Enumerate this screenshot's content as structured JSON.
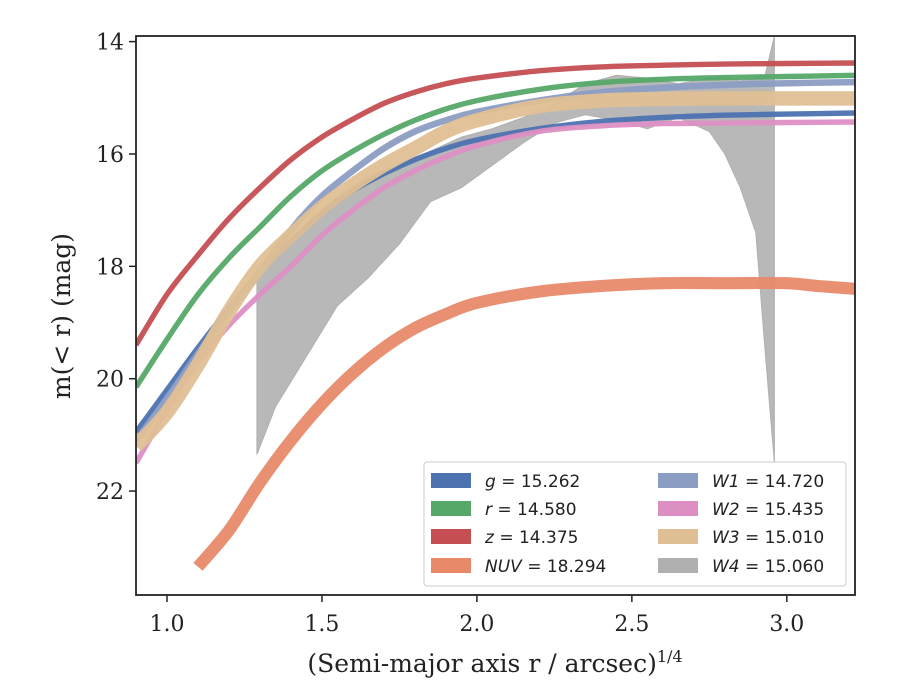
{
  "chart_data": {
    "type": "line",
    "xlabel": "(Semi-major axis r / arcsec)",
    "xlabel_sup": "1/4",
    "ylabel": "m(< r) (mag)",
    "xlim": [
      0.9,
      3.22
    ],
    "ylim": [
      23.85,
      13.9
    ],
    "y_inverted": true,
    "xticks": [
      1.0,
      1.5,
      2.0,
      2.5,
      3.0
    ],
    "xtick_labels": [
      "1.0",
      "1.5",
      "2.0",
      "2.5",
      "3.0"
    ],
    "yticks": [
      14,
      16,
      18,
      20,
      22
    ],
    "ytick_labels": [
      "14",
      "16",
      "18",
      "20",
      "22"
    ],
    "grid": false,
    "legend_position": "lower-right",
    "series": [
      {
        "name": "g",
        "label": "g = 15.262",
        "color": "#4c72b0",
        "band_width": 0.06,
        "x": [
          0.9,
          1.0,
          1.1,
          1.2,
          1.3,
          1.4,
          1.5,
          1.6,
          1.7,
          1.8,
          1.9,
          2.0,
          2.2,
          2.4,
          2.6,
          2.8,
          3.0,
          3.22
        ],
        "y": [
          20.95,
          20.2,
          19.45,
          18.75,
          18.1,
          17.55,
          17.05,
          16.65,
          16.35,
          16.1,
          15.9,
          15.75,
          15.55,
          15.42,
          15.35,
          15.31,
          15.29,
          15.27
        ]
      },
      {
        "name": "r",
        "label": "r = 14.580",
        "color": "#55a868",
        "band_width": 0.06,
        "x": [
          0.9,
          1.0,
          1.1,
          1.2,
          1.3,
          1.4,
          1.5,
          1.6,
          1.7,
          1.8,
          1.9,
          2.0,
          2.2,
          2.4,
          2.6,
          2.8,
          3.0,
          3.22
        ],
        "y": [
          20.15,
          19.3,
          18.5,
          17.85,
          17.3,
          16.75,
          16.3,
          15.95,
          15.65,
          15.4,
          15.2,
          15.05,
          14.85,
          14.73,
          14.67,
          14.64,
          14.62,
          14.6
        ]
      },
      {
        "name": "z",
        "label": "z = 14.375",
        "color": "#c44e52",
        "band_width": 0.06,
        "x": [
          0.9,
          1.0,
          1.1,
          1.2,
          1.3,
          1.4,
          1.5,
          1.6,
          1.7,
          1.8,
          1.9,
          2.0,
          2.2,
          2.4,
          2.6,
          2.8,
          3.0,
          3.22
        ],
        "y": [
          19.4,
          18.5,
          17.8,
          17.15,
          16.6,
          16.1,
          15.7,
          15.38,
          15.1,
          14.9,
          14.75,
          14.65,
          14.52,
          14.45,
          14.42,
          14.4,
          14.39,
          14.38
        ]
      },
      {
        "name": "NUV",
        "label": "NUV = 18.294",
        "color": "#e8896a",
        "band_width": 0.18,
        "x": [
          1.1,
          1.2,
          1.3,
          1.4,
          1.5,
          1.6,
          1.7,
          1.8,
          1.9,
          2.0,
          2.2,
          2.4,
          2.6,
          2.8,
          3.0,
          3.1,
          3.22
        ],
        "y": [
          23.35,
          22.7,
          21.85,
          21.1,
          20.45,
          19.9,
          19.45,
          19.1,
          18.85,
          18.65,
          18.45,
          18.35,
          18.3,
          18.3,
          18.3,
          18.35,
          18.4
        ]
      },
      {
        "name": "W1",
        "label": "W1 = 14.720",
        "color": "#8c9dc4",
        "band_width": 0.08,
        "x": [
          0.9,
          1.0,
          1.1,
          1.2,
          1.3,
          1.4,
          1.5,
          1.6,
          1.7,
          1.8,
          1.9,
          2.0,
          2.2,
          2.4,
          2.6,
          2.8,
          3.0,
          3.22
        ],
        "y": [
          21.1,
          20.35,
          19.55,
          18.8,
          18.1,
          17.35,
          16.75,
          16.3,
          15.9,
          15.6,
          15.4,
          15.25,
          15.05,
          14.9,
          14.82,
          14.77,
          14.74,
          14.72
        ]
      },
      {
        "name": "W2",
        "label": "W2 = 15.435",
        "color": "#dd8fc4",
        "band_width": 0.06,
        "x": [
          0.9,
          1.0,
          1.1,
          1.2,
          1.3,
          1.4,
          1.5,
          1.6,
          1.7,
          1.8,
          1.9,
          2.0,
          2.2,
          2.4,
          2.6,
          2.8,
          3.0,
          3.22
        ],
        "y": [
          21.5,
          20.55,
          19.7,
          19.05,
          18.5,
          18.0,
          17.45,
          17.0,
          16.6,
          16.3,
          16.05,
          15.85,
          15.6,
          15.5,
          15.46,
          15.45,
          15.44,
          15.43
        ]
      },
      {
        "name": "W3",
        "label": "W3 = 15.010",
        "color": "#dfbf94",
        "band_width": 0.22,
        "x": [
          0.9,
          1.0,
          1.1,
          1.2,
          1.3,
          1.4,
          1.5,
          1.6,
          1.7,
          1.8,
          1.9,
          2.0,
          2.2,
          2.4,
          2.6,
          2.8,
          3.0,
          3.22
        ],
        "y": [
          21.2,
          20.6,
          19.75,
          18.8,
          18.0,
          17.45,
          16.95,
          16.55,
          16.2,
          15.9,
          15.6,
          15.4,
          15.15,
          15.05,
          15.02,
          15.01,
          15.01,
          15.01
        ]
      },
      {
        "name": "W4",
        "label": "W4 = 15.060",
        "color": "#b0b0b0",
        "band": true,
        "x": [
          1.29,
          1.35,
          1.45,
          1.55,
          1.65,
          1.75,
          1.85,
          1.95,
          2.05,
          2.15,
          2.25,
          2.35,
          2.45,
          2.55,
          2.65,
          2.75,
          2.8,
          2.85,
          2.9,
          2.93,
          2.96
        ],
        "y_bright": [
          18.0,
          17.85,
          17.3,
          16.75,
          16.4,
          16.2,
          15.95,
          15.7,
          15.55,
          15.35,
          15.1,
          14.75,
          14.6,
          14.65,
          14.75,
          14.65,
          14.65,
          14.7,
          14.65,
          14.6,
          13.9
        ],
        "y_faint": [
          21.35,
          20.5,
          19.6,
          18.7,
          18.2,
          17.6,
          16.85,
          16.6,
          16.2,
          15.8,
          15.45,
          15.3,
          15.4,
          15.55,
          15.35,
          15.6,
          16.0,
          16.6,
          17.4,
          19.5,
          21.5
        ]
      }
    ],
    "legend": [
      [
        "g",
        "= 15.262"
      ],
      [
        "r",
        "= 14.580"
      ],
      [
        "z",
        "= 14.375"
      ],
      [
        "NUV",
        "= 18.294"
      ],
      [
        "W1",
        "= 14.720"
      ],
      [
        "W2",
        "= 15.435"
      ],
      [
        "W3",
        "= 15.010"
      ],
      [
        "W4",
        "= 15.060"
      ]
    ]
  }
}
